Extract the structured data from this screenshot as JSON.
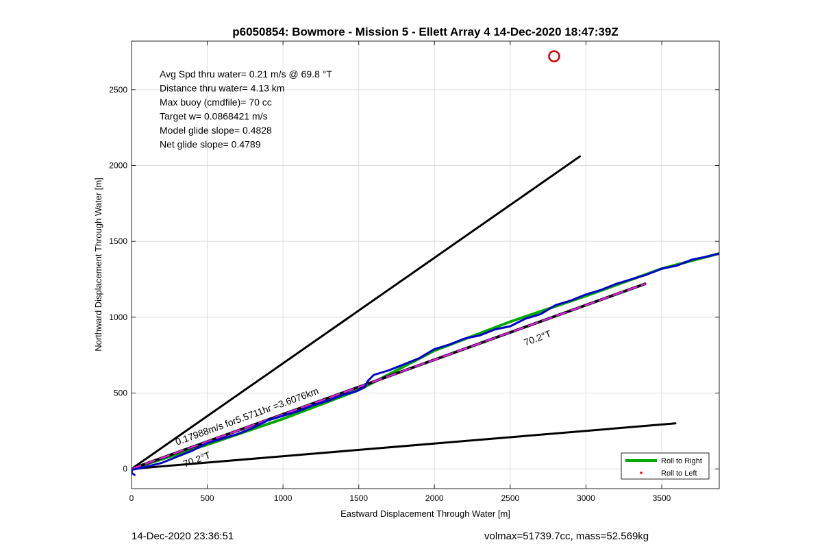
{
  "chart_data": {
    "type": "line",
    "title": "p6050854: Bowmore - Mission 5 - Ellett Array 4 14-Dec-2020 18:47:39Z",
    "xlabel": "Eastward Displacement Through Water [m]",
    "ylabel": "Northward Displacement Through Water [m]",
    "xlim": [
      0,
      3880
    ],
    "ylim": [
      -130,
      2820
    ],
    "xticks": [
      0,
      500,
      1000,
      1500,
      2000,
      2500,
      3000,
      3500
    ],
    "yticks": [
      0,
      500,
      1000,
      1500,
      2000,
      2500
    ],
    "grid": true,
    "legend_position": "bottom-right",
    "legend": [
      {
        "label": "Roll to Right",
        "color": "#00aa00",
        "marker": "line"
      },
      {
        "label": "Roll to Left",
        "color": "#ff0000",
        "marker": "dot"
      }
    ],
    "info_lines": [
      "Avg Spd thru water=  0.21 m/s @  69.8 °T",
      "Distance thru water=  4.13 km",
      "Max buoy (cmdfile)= 70 cc",
      "Target w= 0.0868421 m/s",
      "Model glide slope= 0.4828",
      "Net glide slope= 0.4789"
    ],
    "annotations": [
      {
        "text": "0.17988m/s for5.5711hr =3.6076km",
        "x": 300,
        "y": 155,
        "rotation": -20
      },
      {
        "text": "70.2°T",
        "x": 350,
        "y": 10,
        "rotation": -20
      },
      {
        "text": "70.2°T",
        "x": 2600,
        "y": 810,
        "rotation": -20
      }
    ],
    "series": [
      {
        "style": "envelope",
        "color": "#000000",
        "x": [
          0,
          2960
        ],
        "y": [
          0,
          2060
        ]
      },
      {
        "style": "envelope",
        "color": "#000000",
        "x": [
          0,
          3590
        ],
        "y": [
          0,
          300
        ]
      },
      {
        "style": "fit",
        "color": "#00aa00",
        "x": [
          0,
          500,
          1000,
          1500,
          2000,
          2500,
          3000,
          3500,
          3880
        ],
        "y": [
          0,
          160,
          330,
          520,
          780,
          970,
          1140,
          1320,
          1420
        ]
      },
      {
        "style": "heading",
        "color": "#000000",
        "x": [
          0,
          3390
        ],
        "y": [
          0,
          1220
        ]
      },
      {
        "style": "heading-dash",
        "color": "#dd22dd",
        "x": [
          0,
          3390
        ],
        "y": [
          0,
          1220
        ]
      },
      {
        "style": "track",
        "color": "#0000cc",
        "x": [
          20,
          0,
          5,
          60,
          120,
          200,
          300,
          400,
          500,
          600,
          700,
          800,
          900,
          1000,
          1100,
          1200,
          1300,
          1400,
          1480,
          1540,
          1560,
          1600,
          1700,
          1800,
          1900,
          2000,
          2100,
          2200,
          2300,
          2400,
          2500,
          2600,
          2700,
          2800,
          2900,
          3000,
          3100,
          3200,
          3300,
          3400,
          3500,
          3600,
          3700,
          3800,
          3880
        ],
        "y": [
          -40,
          -25,
          -5,
          5,
          20,
          40,
          80,
          120,
          170,
          200,
          230,
          270,
          320,
          350,
          380,
          420,
          450,
          490,
          510,
          540,
          580,
          620,
          650,
          690,
          730,
          790,
          820,
          860,
          880,
          920,
          940,
          990,
          1020,
          1080,
          1110,
          1150,
          1180,
          1220,
          1250,
          1280,
          1320,
          1340,
          1380,
          1400,
          1420
        ]
      },
      {
        "style": "marker",
        "color": "#cc0000",
        "x": [
          2790
        ],
        "y": [
          2720
        ]
      }
    ]
  },
  "footer": {
    "timestamp": "14-Dec-2020 23:36:51",
    "summary": "volmax=51739.7cc, mass=52.569kg"
  }
}
